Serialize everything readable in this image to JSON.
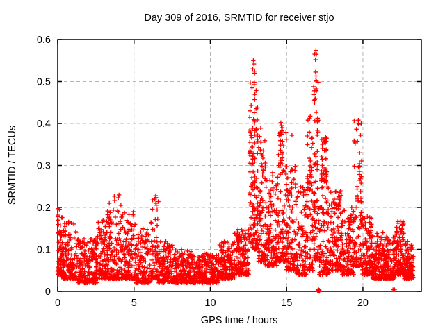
{
  "window": {
    "title": "Day 309 of 2016, SRMTID for receiver stjo"
  },
  "chart_data": {
    "type": "scatter",
    "title": "Day 309 of 2016, SRMTID for receiver stjo",
    "xlabel": "GPS time / hours",
    "ylabel": "SRMTID / TECUs",
    "xlim": [
      0,
      23.83
    ],
    "ylim": [
      0,
      0.6
    ],
    "xticks": [
      0,
      5,
      10,
      15,
      20
    ],
    "yticks": [
      0,
      0.1,
      0.2,
      0.3,
      0.4,
      0.5,
      0.6
    ],
    "grid": true,
    "legend": "none",
    "marker": "plus",
    "marker_color": "#ff0000",
    "grid_color": "#b4b4b4",
    "border_color": "#000000",
    "n_points_approx": 3700,
    "density_segments": [
      {
        "x0": 0.0,
        "x1": 0.35,
        "n": 70,
        "ylo": 0.04,
        "yhi": 0.2,
        "bias": 2.0
      },
      {
        "x0": 0.35,
        "x1": 1.2,
        "n": 150,
        "ylo": 0.03,
        "yhi": 0.17,
        "bias": 2.3
      },
      {
        "x0": 1.2,
        "x1": 2.6,
        "n": 210,
        "ylo": 0.02,
        "yhi": 0.13,
        "bias": 2.0
      },
      {
        "x0": 2.6,
        "x1": 3.2,
        "n": 95,
        "ylo": 0.03,
        "yhi": 0.17,
        "bias": 2.0
      },
      {
        "x0": 3.2,
        "x1": 3.6,
        "n": 70,
        "ylo": 0.03,
        "yhi": 0.21,
        "bias": 2.2
      },
      {
        "x0": 3.6,
        "x1": 4.3,
        "n": 105,
        "ylo": 0.03,
        "yhi": 0.23,
        "bias": 2.5
      },
      {
        "x0": 4.3,
        "x1": 5.1,
        "n": 115,
        "ylo": 0.03,
        "yhi": 0.19,
        "bias": 2.2
      },
      {
        "x0": 5.1,
        "x1": 6.1,
        "n": 135,
        "ylo": 0.02,
        "yhi": 0.15,
        "bias": 2.0
      },
      {
        "x0": 6.1,
        "x1": 6.6,
        "n": 75,
        "ylo": 0.03,
        "yhi": 0.23,
        "bias": 2.3
      },
      {
        "x0": 6.6,
        "x1": 7.6,
        "n": 135,
        "ylo": 0.02,
        "yhi": 0.12,
        "bias": 1.8
      },
      {
        "x0": 7.6,
        "x1": 9.0,
        "n": 190,
        "ylo": 0.02,
        "yhi": 0.1,
        "bias": 1.8
      },
      {
        "x0": 9.0,
        "x1": 10.6,
        "n": 210,
        "ylo": 0.02,
        "yhi": 0.09,
        "bias": 1.6
      },
      {
        "x0": 10.6,
        "x1": 11.6,
        "n": 150,
        "ylo": 0.03,
        "yhi": 0.12,
        "bias": 1.8
      },
      {
        "x0": 11.6,
        "x1": 12.55,
        "n": 160,
        "ylo": 0.04,
        "yhi": 0.15,
        "bias": 1.8
      },
      {
        "x0": 12.55,
        "x1": 12.85,
        "n": 65,
        "ylo": 0.1,
        "yhi": 0.5,
        "bias": 1.6,
        "cols": 3
      },
      {
        "x0": 12.85,
        "x1": 13.15,
        "n": 75,
        "ylo": 0.1,
        "yhi": 0.545,
        "bias": 1.8,
        "cols": 3
      },
      {
        "x0": 13.15,
        "x1": 13.6,
        "n": 90,
        "ylo": 0.07,
        "yhi": 0.42,
        "bias": 2.2
      },
      {
        "x0": 13.6,
        "x1": 14.4,
        "n": 130,
        "ylo": 0.06,
        "yhi": 0.3,
        "bias": 2.0
      },
      {
        "x0": 14.4,
        "x1": 15.0,
        "n": 95,
        "ylo": 0.07,
        "yhi": 0.38,
        "bias": 2.4
      },
      {
        "x0": 14.55,
        "x1": 14.75,
        "n": 16,
        "ylo": 0.3,
        "yhi": 0.4,
        "bias": 1.0,
        "cols": 2
      },
      {
        "x0": 15.0,
        "x1": 15.6,
        "n": 95,
        "ylo": 0.05,
        "yhi": 0.3,
        "bias": 2.2
      },
      {
        "x0": 15.6,
        "x1": 16.3,
        "n": 95,
        "ylo": 0.04,
        "yhi": 0.25,
        "bias": 2.2
      },
      {
        "x0": 16.3,
        "x1": 16.75,
        "n": 75,
        "ylo": 0.05,
        "yhi": 0.43,
        "bias": 2.0,
        "cols": 3
      },
      {
        "x0": 16.75,
        "x1": 17.1,
        "n": 85,
        "ylo": 0.07,
        "yhi": 0.575,
        "bias": 1.7,
        "cols": 3
      },
      {
        "x0": 17.1,
        "x1": 17.8,
        "n": 95,
        "ylo": 0.04,
        "yhi": 0.25,
        "bias": 2.0
      },
      {
        "x0": 17.25,
        "x1": 17.65,
        "n": 42,
        "ylo": 0.26,
        "yhi": 0.37,
        "bias": 1.2,
        "cols": 3
      },
      {
        "x0": 17.8,
        "x1": 18.6,
        "n": 115,
        "ylo": 0.05,
        "yhi": 0.24,
        "bias": 1.8
      },
      {
        "x0": 18.6,
        "x1": 19.4,
        "n": 115,
        "ylo": 0.04,
        "yhi": 0.2,
        "bias": 2.0
      },
      {
        "x0": 19.4,
        "x1": 19.95,
        "n": 95,
        "ylo": 0.06,
        "yhi": 0.41,
        "bias": 2.4,
        "cols": 4
      },
      {
        "x0": 19.95,
        "x1": 20.6,
        "n": 125,
        "ylo": 0.04,
        "yhi": 0.18,
        "bias": 2.0
      },
      {
        "x0": 20.6,
        "x1": 21.4,
        "n": 145,
        "ylo": 0.03,
        "yhi": 0.14,
        "bias": 2.0
      },
      {
        "x0": 21.4,
        "x1": 22.1,
        "n": 135,
        "ylo": 0.03,
        "yhi": 0.13,
        "bias": 2.0
      },
      {
        "x0": 22.1,
        "x1": 22.7,
        "n": 115,
        "ylo": 0.04,
        "yhi": 0.17,
        "bias": 2.2
      },
      {
        "x0": 22.7,
        "x1": 23.3,
        "n": 125,
        "ylo": 0.03,
        "yhi": 0.12,
        "bias": 2.0
      }
    ],
    "peak_points": [
      [
        12.78,
        0.53
      ],
      [
        12.82,
        0.55
      ],
      [
        12.86,
        0.542
      ],
      [
        12.9,
        0.52
      ],
      [
        16.89,
        0.552
      ],
      [
        16.92,
        0.574
      ],
      [
        16.95,
        0.565
      ],
      [
        14.62,
        0.402
      ],
      [
        14.66,
        0.395
      ],
      [
        16.4,
        0.408
      ],
      [
        19.7,
        0.408
      ],
      [
        19.74,
        0.398
      ],
      [
        15.35,
        0.372
      ],
      [
        0.02,
        0.197
      ],
      [
        3.38,
        0.21
      ],
      [
        4.02,
        0.23
      ],
      [
        4.95,
        0.19
      ],
      [
        6.42,
        0.228
      ],
      [
        22.45,
        0.168
      ],
      [
        22.3,
        0.162
      ]
    ],
    "on_axis_points": [
      [
        17.03,
        0.001
      ],
      [
        17.06,
        0.003
      ],
      [
        17.08,
        0.0
      ],
      [
        17.1,
        0.004
      ],
      [
        17.12,
        0.001
      ],
      [
        17.14,
        0.003
      ],
      [
        17.16,
        0.0
      ],
      [
        17.09,
        0.002
      ],
      [
        21.97,
        0.004
      ],
      [
        22.07,
        0.004
      ]
    ]
  }
}
